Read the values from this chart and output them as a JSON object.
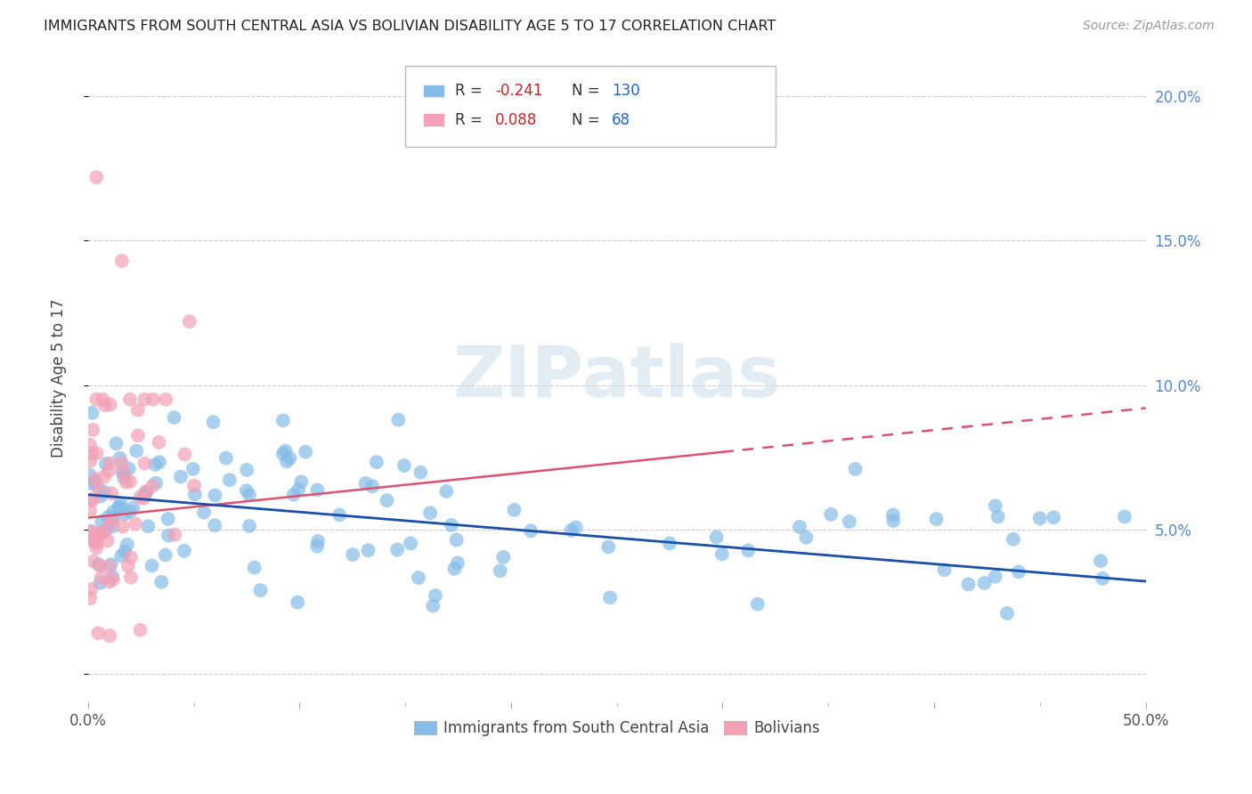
{
  "title": "IMMIGRANTS FROM SOUTH CENTRAL ASIA VS BOLIVIAN DISABILITY AGE 5 TO 17 CORRELATION CHART",
  "source": "Source: ZipAtlas.com",
  "ylabel": "Disability Age 5 to 17",
  "ytick_vals": [
    0.0,
    0.05,
    0.1,
    0.15,
    0.2
  ],
  "xlim": [
    0.0,
    0.5
  ],
  "ylim": [
    -0.01,
    0.215
  ],
  "r_blue": -0.241,
  "n_blue": 130,
  "r_pink": 0.088,
  "n_pink": 68,
  "color_blue": "#85bce8",
  "color_pink": "#f4a0b5",
  "color_blue_line": "#1a4faa",
  "color_pink_line": "#e05070",
  "legend_label_blue": "Immigrants from South Central Asia",
  "legend_label_pink": "Bolivians",
  "background_color": "#ffffff",
  "grid_color": "#cccccc"
}
